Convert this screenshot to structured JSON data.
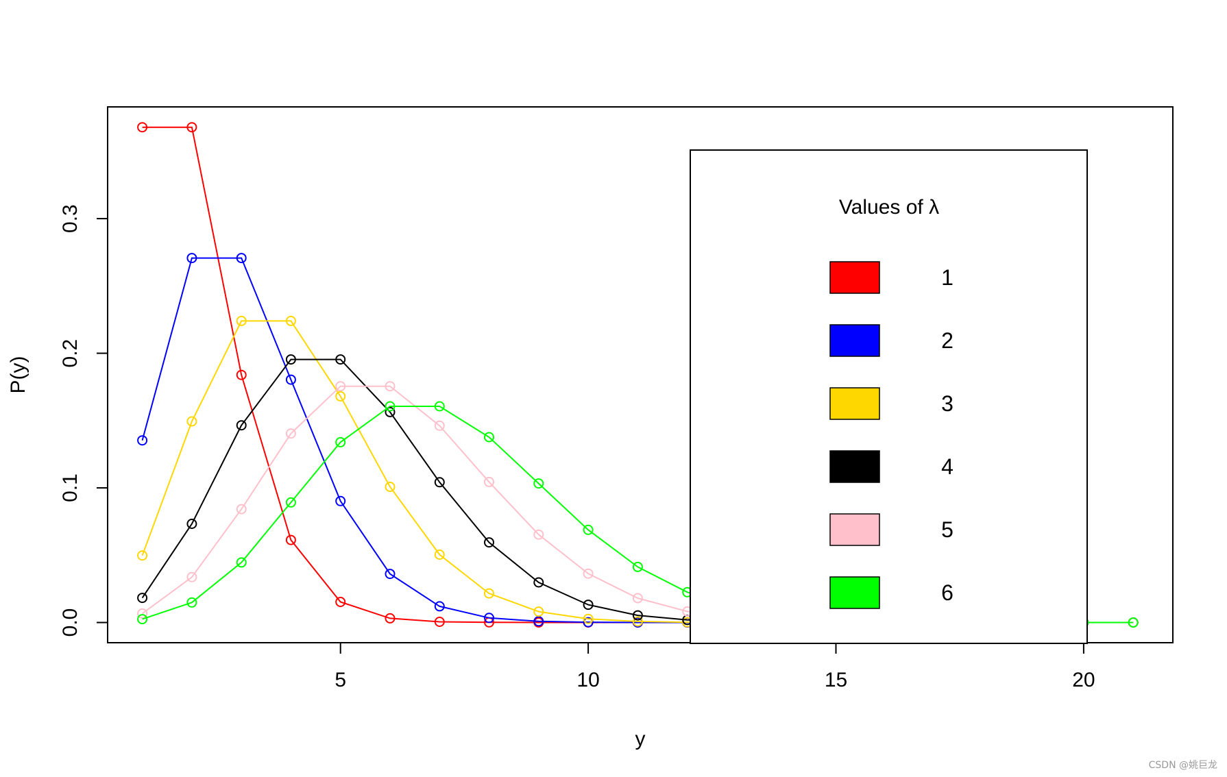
{
  "chart_data": {
    "type": "line",
    "title": "",
    "xlabel": "y",
    "ylabel": "P(y)",
    "xlim": [
      0.3,
      21.8
    ],
    "ylim": [
      -0.015,
      0.383
    ],
    "x_ticks": [
      5,
      10,
      15,
      20
    ],
    "x_tick_labels": [
      "5",
      "10",
      "15",
      "20"
    ],
    "y_ticks": [
      0.0,
      0.1,
      0.2,
      0.3
    ],
    "y_tick_labels": [
      "0.0",
      "0.1",
      "0.2",
      "0.3"
    ],
    "grid": false,
    "markers": "open-circle",
    "x": [
      1,
      2,
      3,
      4,
      5,
      6,
      7,
      8,
      9,
      10,
      11,
      12,
      13,
      14,
      15,
      16,
      17,
      18,
      19,
      20,
      21
    ],
    "series": [
      {
        "color": "#ff0000",
        "values": [
          0.3679,
          0.3679,
          0.1839,
          0.0613,
          0.0153,
          0.0031,
          0.0005,
          0.0001,
          0.0,
          0.0,
          0.0,
          0.0,
          0.0,
          0.0,
          0.0,
          0.0,
          0.0,
          0.0,
          0.0,
          0.0,
          0.0
        ]
      },
      {
        "color": "#0000ff",
        "values": [
          0.1353,
          0.2707,
          0.2707,
          0.1804,
          0.0902,
          0.0361,
          0.012,
          0.0034,
          0.0009,
          0.0002,
          0.0,
          0.0,
          0.0,
          0.0,
          0.0,
          0.0,
          0.0,
          0.0,
          0.0,
          0.0,
          0.0
        ]
      },
      {
        "color": "#ffd700",
        "values": [
          0.0498,
          0.1494,
          0.224,
          0.224,
          0.168,
          0.1008,
          0.0504,
          0.0216,
          0.0081,
          0.0027,
          0.0008,
          0.0002,
          0.0001,
          0.0,
          0.0,
          0.0,
          0.0,
          0.0,
          0.0,
          0.0,
          0.0
        ]
      },
      {
        "color": "#000000",
        "values": [
          0.0183,
          0.0733,
          0.1465,
          0.1954,
          0.1954,
          0.1563,
          0.1042,
          0.0595,
          0.0298,
          0.0132,
          0.0053,
          0.0019,
          0.0006,
          0.0002,
          0.0001,
          0.0,
          0.0,
          0.0,
          0.0,
          0.0,
          0.0
        ]
      },
      {
        "color": "#ffc0cb",
        "values": [
          0.0067,
          0.0337,
          0.0842,
          0.1404,
          0.1755,
          0.1755,
          0.1462,
          0.1044,
          0.0653,
          0.0363,
          0.0181,
          0.0082,
          0.0034,
          0.0013,
          0.0005,
          0.0002,
          0.0,
          0.0,
          0.0,
          0.0,
          0.0
        ]
      },
      {
        "color": "#00ff00",
        "values": [
          0.0025,
          0.0149,
          0.0446,
          0.0892,
          0.1339,
          0.1606,
          0.1606,
          0.1377,
          0.1033,
          0.0688,
          0.0413,
          0.0225,
          0.0113,
          0.0052,
          0.0022,
          0.0009,
          0.0003,
          0.0001,
          0.0,
          0.0,
          0.0
        ]
      }
    ],
    "legend": {
      "title": "Values of λ",
      "placement": "right",
      "entries": [
        {
          "label": "1",
          "color": "#ff0000"
        },
        {
          "label": "2",
          "color": "#0000ff"
        },
        {
          "label": "3",
          "color": "#ffd700"
        },
        {
          "label": "4",
          "color": "#000000"
        },
        {
          "label": "5",
          "color": "#ffc0cb"
        },
        {
          "label": "6",
          "color": "#00ff00"
        }
      ]
    }
  },
  "watermark": "CSDN @姚巨龙"
}
